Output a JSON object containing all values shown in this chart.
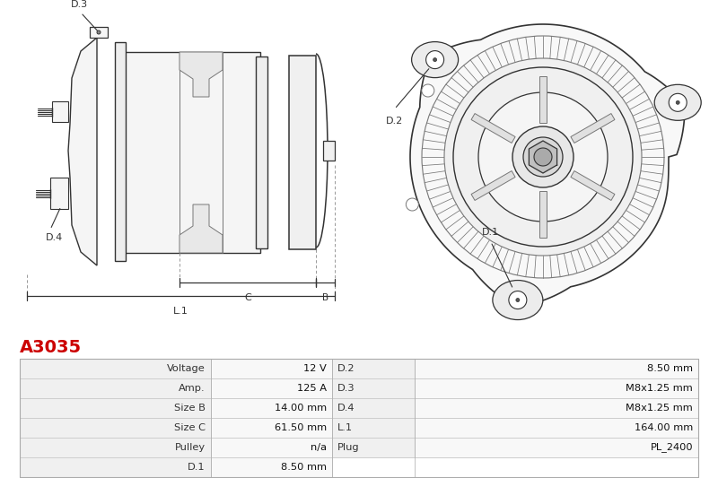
{
  "title": "A3035",
  "title_color": "#cc0000",
  "bg_color": "#ffffff",
  "table_data": [
    [
      "Voltage",
      "12 V",
      "D.2",
      "8.50 mm"
    ],
    [
      "Amp.",
      "125 A",
      "D.3",
      "M8x1.25 mm"
    ],
    [
      "Size B",
      "14.00 mm",
      "D.4",
      "M8x1.25 mm"
    ],
    [
      "Size C",
      "61.50 mm",
      "L.1",
      "164.00 mm"
    ],
    [
      "Pulley",
      "n/a",
      "Plug",
      "PL_2400"
    ],
    [
      "D.1",
      "8.50 mm",
      "",
      ""
    ]
  ],
  "line_color": "#777777",
  "dark_line": "#333333",
  "fill_light": "#f5f5f5",
  "fill_mid": "#e8e8e8"
}
